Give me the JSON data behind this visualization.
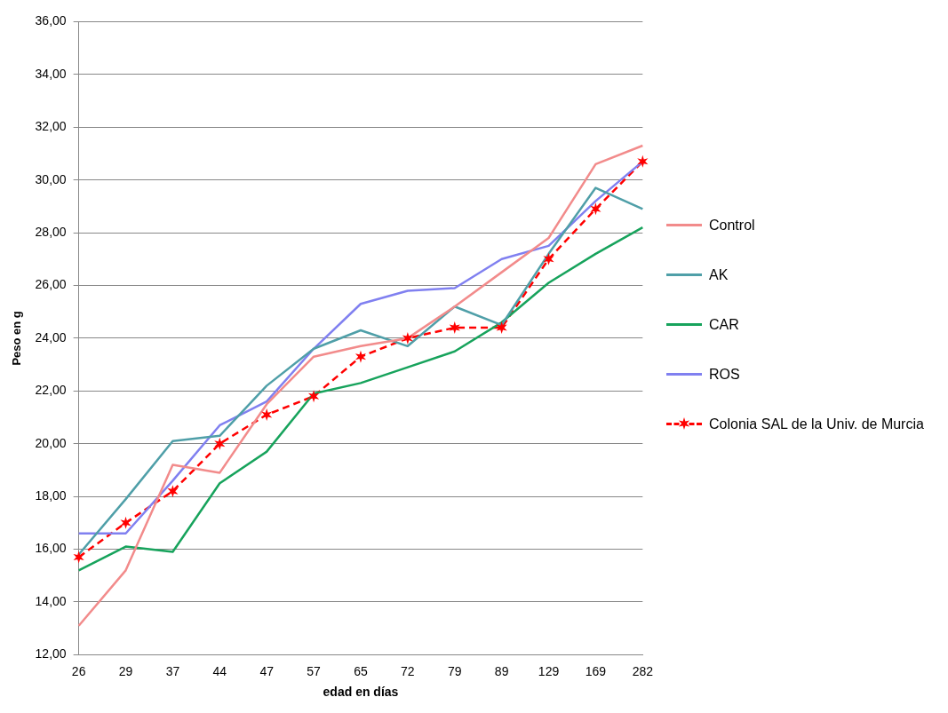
{
  "chart_data": {
    "type": "line",
    "xlabel": "edad en días",
    "ylabel": "Peso en g",
    "categories": [
      "26",
      "29",
      "37",
      "44",
      "47",
      "57",
      "65",
      "72",
      "79",
      "89",
      "129",
      "169",
      "282"
    ],
    "ylim": [
      12,
      36
    ],
    "yticks": [
      {
        "value": 12,
        "label": "12,00"
      },
      {
        "value": 14,
        "label": "14,00"
      },
      {
        "value": 16,
        "label": "16,00"
      },
      {
        "value": 18,
        "label": "18,00"
      },
      {
        "value": 20,
        "label": "20,00"
      },
      {
        "value": 22,
        "label": "22,00"
      },
      {
        "value": 24,
        "label": "24,00"
      },
      {
        "value": 26,
        "label": "26,00"
      },
      {
        "value": 28,
        "label": "28,00"
      },
      {
        "value": 30,
        "label": "30,00"
      },
      {
        "value": 32,
        "label": "32,00"
      },
      {
        "value": 34,
        "label": "34,00"
      },
      {
        "value": 36,
        "label": "36,00"
      }
    ],
    "grid": "y",
    "legend": "right",
    "marker": "none",
    "line_style": "solid",
    "series": [
      {
        "name": "Control",
        "color": "#f28b8b",
        "values": [
          13.1,
          15.2,
          19.2,
          18.9,
          21.5,
          23.3,
          23.7,
          24.0,
          25.2,
          26.5,
          27.8,
          30.6,
          31.3
        ]
      },
      {
        "name": "AK",
        "color": "#4f9fa8",
        "values": [
          15.8,
          17.9,
          20.1,
          20.3,
          22.2,
          23.6,
          24.3,
          23.7,
          25.2,
          24.5,
          27.2,
          29.7,
          28.9
        ]
      },
      {
        "name": "CAR",
        "color": "#17a35c",
        "values": [
          15.2,
          16.1,
          15.9,
          18.5,
          19.7,
          21.9,
          22.3,
          22.9,
          23.5,
          24.6,
          26.1,
          27.2,
          28.2
        ]
      },
      {
        "name": "ROS",
        "color": "#8080f0",
        "values": [
          16.6,
          16.6,
          18.6,
          20.7,
          21.6,
          23.6,
          25.3,
          25.8,
          25.9,
          27.0,
          27.5,
          29.2,
          30.7
        ]
      },
      {
        "name": "Colonia SAL de la Univ. de Murcia",
        "color": "#ff0000",
        "marker": "cross",
        "line_style": "dashed",
        "values": [
          15.7,
          17.0,
          18.2,
          20.0,
          21.1,
          21.8,
          23.3,
          24.0,
          24.4,
          24.4,
          27.0,
          28.9,
          30.7
        ]
      }
    ]
  }
}
